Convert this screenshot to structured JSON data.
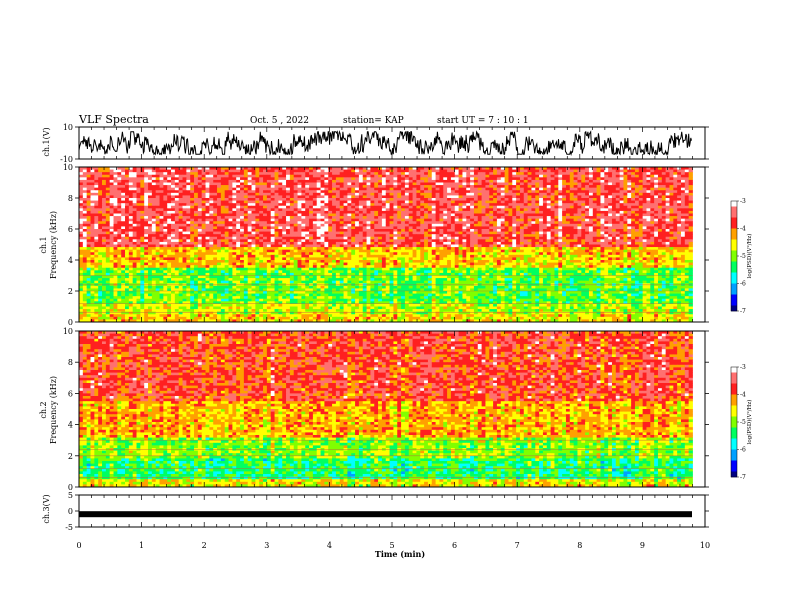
{
  "header": {
    "title": "VLF Spectra",
    "date": "Oct. 5  , 2022",
    "station": "station= KAP",
    "start_ut": "start  UT  =   7  : 10 : 1"
  },
  "colors": {
    "colormap": [
      "#000080",
      "#0000ff",
      "#00a0ff",
      "#00ffff",
      "#00ff60",
      "#80ff00",
      "#ffff00",
      "#ffa000",
      "#ff2020",
      "#ff7070",
      "#ffffff"
    ],
    "waveform": "#000000"
  },
  "chart_data": [
    {
      "type": "line",
      "name": "ch1-waveform",
      "ylabel": "ch.1(V)",
      "ylim": [
        -10,
        10
      ],
      "ytick_labels": [
        "10",
        "-10"
      ],
      "xlim": [
        0,
        10
      ],
      "description_values": {
        "mean": 0,
        "min": -7,
        "max": 7
      }
    },
    {
      "type": "heatmap",
      "name": "ch1-spectrogram",
      "ylabel": "ch.1\nFrequency  (kHz)",
      "ylim": [
        0,
        10
      ],
      "ytick_labels": [
        "0",
        "2",
        "4",
        "6",
        "8",
        "10"
      ],
      "xlim": [
        0,
        9.8
      ],
      "bands": [
        {
          "f_from": 0.0,
          "f_to": 0.5,
          "log_psd": -4.5
        },
        {
          "f_from": 0.5,
          "f_to": 1.2,
          "log_psd": -4.8
        },
        {
          "f_from": 1.2,
          "f_to": 3.5,
          "log_psd": -5.1
        },
        {
          "f_from": 3.5,
          "f_to": 4.8,
          "log_psd": -4.4
        },
        {
          "f_from": 4.8,
          "f_to": 10.0,
          "log_psd": -3.6
        }
      ],
      "colorbar": {
        "label": "log(PSD)(V²/Hz)",
        "min": -7,
        "max": -3,
        "ticks": [
          "-3",
          "-4",
          "-5",
          "-6",
          "-7"
        ]
      }
    },
    {
      "type": "heatmap",
      "name": "ch2-spectrogram",
      "ylabel": "ch.2\nFrequency  (kHz)",
      "ylim": [
        0,
        10
      ],
      "ytick_labels": [
        "0",
        "2",
        "4",
        "6",
        "8",
        "10"
      ],
      "xlim": [
        0,
        9.8
      ],
      "bands": [
        {
          "f_from": 0.0,
          "f_to": 0.5,
          "log_psd": -4.6
        },
        {
          "f_from": 0.5,
          "f_to": 1.8,
          "log_psd": -5.4
        },
        {
          "f_from": 1.8,
          "f_to": 3.2,
          "log_psd": -5.0
        },
        {
          "f_from": 3.2,
          "f_to": 5.5,
          "log_psd": -4.3
        },
        {
          "f_from": 5.5,
          "f_to": 10.0,
          "log_psd": -3.8
        }
      ],
      "colorbar": {
        "label": "log(PSD)(V²/Hz)",
        "min": -7,
        "max": -3,
        "ticks": [
          "-3",
          "-4",
          "-5",
          "-6",
          "-7"
        ]
      }
    },
    {
      "type": "line",
      "name": "ch3-waveform",
      "ylabel": "ch.3(V)",
      "ylim": [
        -5,
        5
      ],
      "ytick_labels": [
        "5",
        "0",
        "-5"
      ],
      "xlim": [
        0,
        10
      ],
      "description_values": {
        "mean": -1.0,
        "min": -1.3,
        "max": -0.7
      }
    }
  ],
  "xaxis": {
    "label": "Time  (min)",
    "tick_labels": [
      "0",
      "1",
      "2",
      "3",
      "4",
      "5",
      "6",
      "7",
      "8",
      "9",
      "10"
    ],
    "xlim": [
      0,
      10
    ]
  }
}
